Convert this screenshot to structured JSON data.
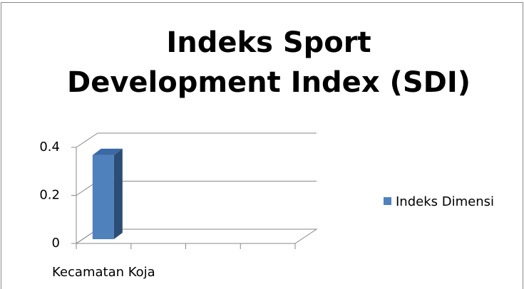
{
  "chart_data": {
    "type": "bar3d",
    "title": "Indeks Sport Development Index (SDI)",
    "categories": [
      "Kecamatan Koja",
      null,
      null,
      null
    ],
    "series": [
      {
        "name": "Indeks Dimensi",
        "color": "#4f81bd",
        "values": [
          0.35,
          null,
          null,
          null
        ]
      }
    ],
    "ylim": [
      0,
      0.4
    ],
    "yticks": [
      0,
      0.2,
      0.4
    ],
    "grid": true,
    "legend": "right"
  }
}
